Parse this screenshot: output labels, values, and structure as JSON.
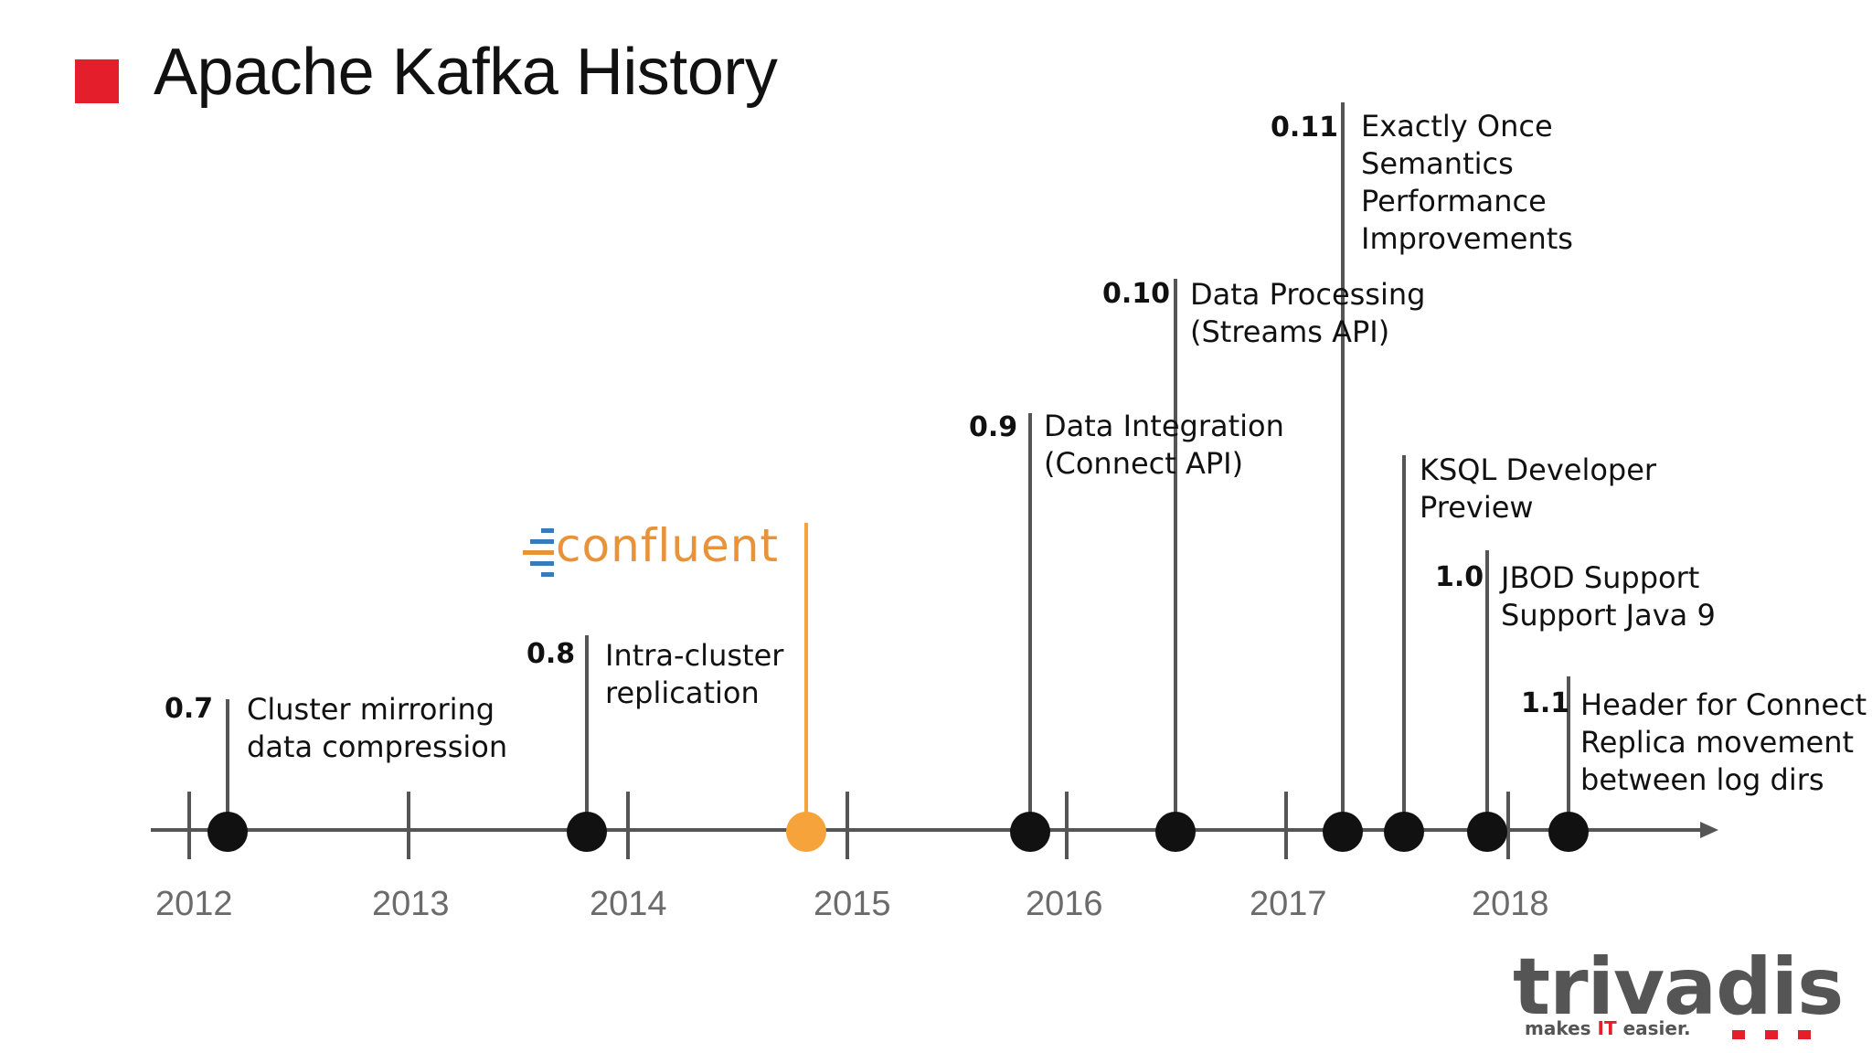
{
  "title": "Apache Kafka History",
  "years": [
    "2012",
    "2013",
    "2014",
    "2015",
    "2016",
    "2017",
    "2018"
  ],
  "releases": [
    {
      "version": "0.7",
      "desc": [
        "Cluster mirroring",
        "data compression"
      ]
    },
    {
      "version": "0.8",
      "desc": [
        "Intra-cluster",
        "replication"
      ]
    },
    {
      "version": "",
      "desc": [],
      "highlight": true,
      "logo": "confluent"
    },
    {
      "version": "0.9",
      "desc": [
        "Data Integration",
        "(Connect API)"
      ]
    },
    {
      "version": "0.10",
      "desc": [
        "Data Processing",
        "(Streams API)"
      ]
    },
    {
      "version": "0.11",
      "desc": [
        "Exactly Once",
        "Semantics",
        "Performance",
        "Improvements"
      ]
    },
    {
      "version": "",
      "desc": [
        "KSQL Developer",
        "Preview"
      ]
    },
    {
      "version": "1.0",
      "desc": [
        "JBOD Support",
        "Support Java 9"
      ]
    },
    {
      "version": "1.1",
      "desc": [
        "Header for Connect",
        "Replica movement",
        "between log dirs"
      ]
    }
  ],
  "logos": {
    "confluent": "confluent",
    "trivadis": "trivadis",
    "tagline_pre": "makes ",
    "tagline_it": "IT",
    "tagline_post": " easier."
  },
  "colors": {
    "accent": "#e41e2b",
    "highlight": "#f5a33a",
    "dot": "#111111",
    "axis": "#555555"
  }
}
